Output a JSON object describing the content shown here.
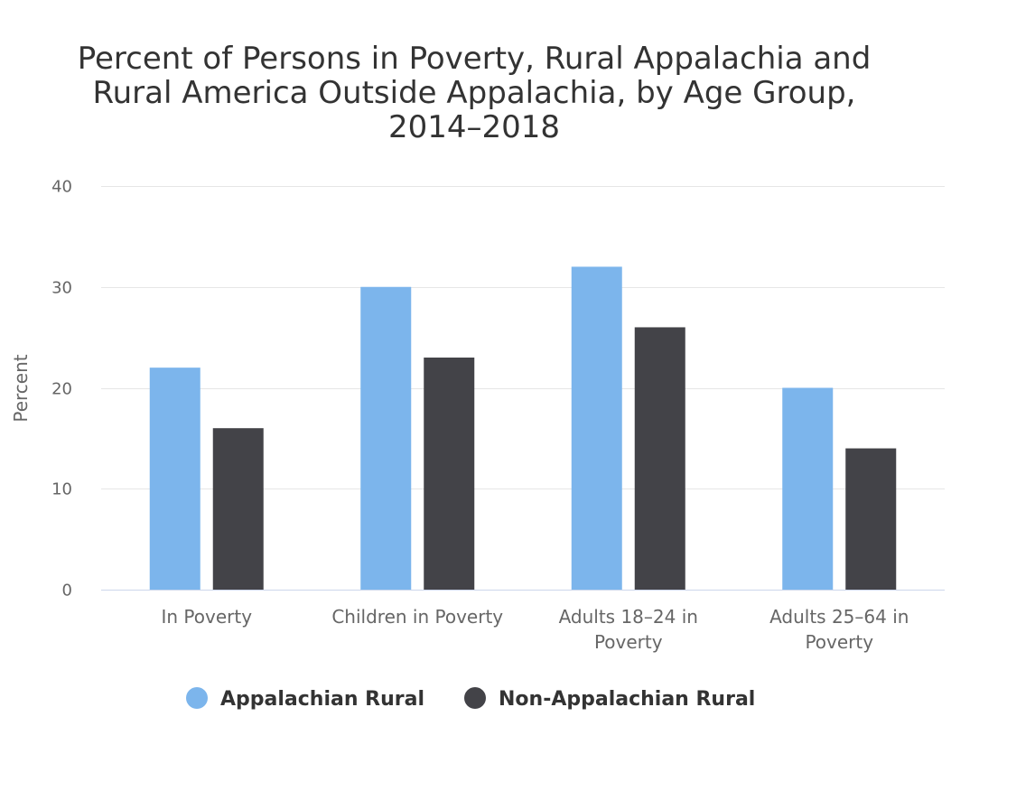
{
  "chart_data": {
    "type": "bar",
    "title": "Percent of Persons in Poverty, Rural Appalachia and Rural America Outside Appalachia, by Age Group, 2014–2018",
    "title_lines": [
      "Percent of Persons in Poverty, Rural Appalachia and",
      "Rural America Outside Appalachia, by Age Group,",
      "2014–2018"
    ],
    "ylabel": "Percent",
    "xlabel": "",
    "ylim": [
      0,
      40
    ],
    "yticks": [
      "0",
      "10",
      "20",
      "30",
      "40"
    ],
    "categories": [
      "In Poverty",
      "Children in Poverty",
      "Adults 18–24 in Poverty",
      "Adults 25–64 in Poverty"
    ],
    "category_label_lines": [
      [
        "In Poverty"
      ],
      [
        "Children in Poverty"
      ],
      [
        "Adults 18–24 in",
        "Poverty"
      ],
      [
        "Adults 25–64 in",
        "Poverty"
      ]
    ],
    "series": [
      {
        "name": "Appalachian Rural",
        "color": "#7cb5ec",
        "values": [
          22,
          30,
          32,
          20
        ]
      },
      {
        "name": "Non-Appalachian Rural",
        "color": "#434348",
        "values": [
          16,
          23,
          26,
          14
        ]
      }
    ],
    "grid": true,
    "legend_position": "bottom-center"
  }
}
